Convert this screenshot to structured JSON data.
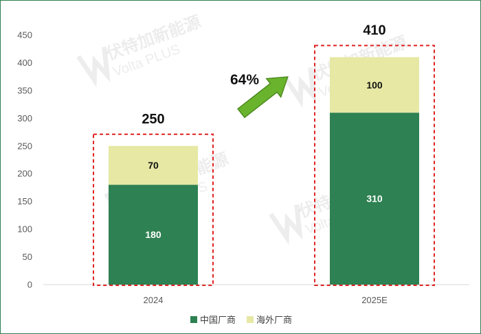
{
  "chart_data": {
    "type": "bar",
    "stacked": true,
    "categories": [
      "2024",
      "2025E"
    ],
    "series": [
      {
        "name": "中国厂商",
        "values": [
          180,
          310
        ],
        "color": "#2e8152",
        "label_color": "#ffffff"
      },
      {
        "name": "海外厂商",
        "values": [
          70,
          100
        ],
        "color": "#e6e8a4",
        "label_color": "#111111"
      }
    ],
    "totals": [
      "250",
      "410"
    ],
    "growth_label": "64%",
    "ylim": [
      0,
      450
    ],
    "yticks": [
      0,
      50,
      100,
      150,
      200,
      250,
      300,
      350,
      400,
      450
    ],
    "grid": false,
    "legend_position": "bottom",
    "highlight_color": "#e02020",
    "arrow_color": "#6ab42d"
  },
  "watermark": {
    "brand": "伏特加新能源",
    "sub": "Volta PLUS"
  }
}
